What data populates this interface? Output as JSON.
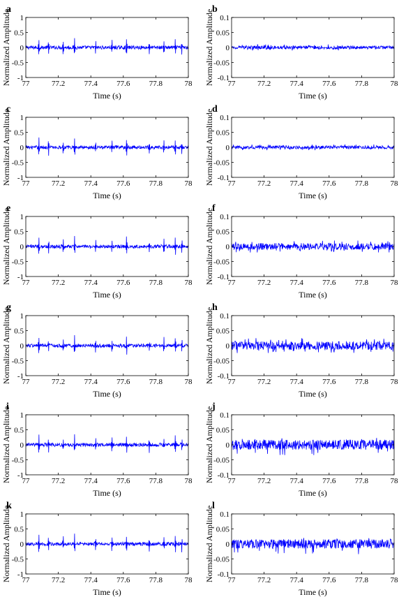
{
  "chart_data": [
    {
      "type": "line",
      "panel": "a",
      "xlabel": "Time (s)",
      "ylabel": "Normalized Amplitude",
      "xlim": [
        77,
        78
      ],
      "ylim": [
        -1,
        1
      ],
      "xticks": [
        "77",
        "77.2",
        "77.4",
        "77.6",
        "77.8",
        "78"
      ],
      "yticks": [
        "1",
        "0.5",
        "0",
        "-0.5",
        "-1"
      ],
      "series": [
        {
          "amplitude_range": [
            -0.3,
            0.35
          ],
          "color": "#0000ff",
          "impulses_at": [
            77.08,
            77.14,
            77.23,
            77.3,
            77.43,
            77.53,
            77.62,
            77.76,
            77.85,
            77.92,
            77.96
          ]
        }
      ]
    },
    {
      "type": "line",
      "panel": "b",
      "xlabel": "Time (s)",
      "ylabel": "Normalized Amplitude",
      "xlim": [
        77,
        78
      ],
      "ylim": [
        -0.1,
        0.1
      ],
      "xticks": [
        "77",
        "77.2",
        "77.4",
        "77.6",
        "77.8",
        "78"
      ],
      "yticks": [
        "0.1",
        "0.05",
        "0",
        "-0.05",
        "-0.1"
      ],
      "series": [
        {
          "amplitude_range": [
            -0.01,
            0.01
          ],
          "color": "#0000ff"
        }
      ]
    },
    {
      "type": "line",
      "panel": "c",
      "xlabel": "Time (s)",
      "ylabel": "Normalized Amplitude",
      "xlim": [
        77,
        78
      ],
      "ylim": [
        -1,
        1
      ],
      "xticks": [
        "77",
        "77.2",
        "77.4",
        "77.6",
        "77.8",
        "78"
      ],
      "yticks": [
        "1",
        "0.5",
        "0",
        "-0.5",
        "-1"
      ],
      "series": [
        {
          "amplitude_range": [
            -0.3,
            0.35
          ],
          "color": "#0000ff",
          "impulses_at": [
            77.08,
            77.14,
            77.23,
            77.3,
            77.43,
            77.53,
            77.62,
            77.76,
            77.85,
            77.92,
            77.96
          ]
        }
      ]
    },
    {
      "type": "line",
      "panel": "d",
      "xlabel": "Time (s)",
      "ylabel": "Normalized Amplitude",
      "xlim": [
        77,
        78
      ],
      "ylim": [
        -0.1,
        0.1
      ],
      "xticks": [
        "77",
        "77.2",
        "77.4",
        "77.6",
        "77.8",
        "78"
      ],
      "yticks": [
        "0.1",
        "0.05",
        "0",
        "-0.05",
        "-0.1"
      ],
      "series": [
        {
          "amplitude_range": [
            -0.01,
            0.01
          ],
          "color": "#0000ff"
        }
      ]
    },
    {
      "type": "line",
      "panel": "e",
      "xlabel": "Time (s)",
      "ylabel": "Normalized Amplitude",
      "xlim": [
        77,
        78
      ],
      "ylim": [
        -1,
        1
      ],
      "xticks": [
        "77",
        "77.2",
        "77.4",
        "77.6",
        "77.8",
        "78"
      ],
      "yticks": [
        "1",
        "0.5",
        "0",
        "-0.5",
        "-1"
      ],
      "series": [
        {
          "amplitude_range": [
            -0.3,
            0.35
          ],
          "color": "#0000ff",
          "impulses_at": [
            77.08,
            77.14,
            77.23,
            77.3,
            77.43,
            77.53,
            77.62,
            77.76,
            77.85,
            77.92,
            77.96
          ]
        }
      ]
    },
    {
      "type": "line",
      "panel": "f",
      "xlabel": "Time (s)",
      "ylabel": "Normalized Amplitude",
      "xlim": [
        77,
        78
      ],
      "ylim": [
        -0.1,
        0.1
      ],
      "xticks": [
        "77",
        "77.2",
        "77.4",
        "77.6",
        "77.8",
        "78"
      ],
      "yticks": [
        "0.1",
        "0.05",
        "0",
        "-0.05",
        "-0.1"
      ],
      "series": [
        {
          "amplitude_range": [
            -0.02,
            0.02
          ],
          "color": "#0000ff"
        }
      ]
    },
    {
      "type": "line",
      "panel": "g",
      "xlabel": "Time (s)",
      "ylabel": "Normalized Amplitude",
      "xlim": [
        77,
        78
      ],
      "ylim": [
        -1,
        1
      ],
      "xticks": [
        "77",
        "77.2",
        "77.4",
        "77.6",
        "77.8",
        "78"
      ],
      "yticks": [
        "1",
        "0.5",
        "0",
        "-0.5",
        "-1"
      ],
      "series": [
        {
          "amplitude_range": [
            -0.3,
            0.35
          ],
          "color": "#0000ff",
          "impulses_at": [
            77.08,
            77.14,
            77.23,
            77.3,
            77.43,
            77.53,
            77.62,
            77.76,
            77.85,
            77.92,
            77.96
          ]
        }
      ]
    },
    {
      "type": "line",
      "panel": "h",
      "xlabel": "Time (s)",
      "ylabel": "Normalized Amplitude",
      "xlim": [
        77,
        78
      ],
      "ylim": [
        -0.1,
        0.1
      ],
      "xticks": [
        "77",
        "77.2",
        "77.4",
        "77.6",
        "77.8",
        "78"
      ],
      "yticks": [
        "0.1",
        "0.05",
        "0",
        "-0.05",
        "-0.1"
      ],
      "series": [
        {
          "amplitude_range": [
            -0.025,
            0.025
          ],
          "color": "#0000ff"
        }
      ]
    },
    {
      "type": "line",
      "panel": "i",
      "xlabel": "Time (s)",
      "ylabel": "Normalized Amplitude",
      "xlim": [
        77,
        78
      ],
      "ylim": [
        -1,
        1
      ],
      "xticks": [
        "77",
        "77.2",
        "77.4",
        "77.6",
        "77.8",
        "78"
      ],
      "yticks": [
        "1",
        "0.5",
        "0",
        "-0.5",
        "-1"
      ],
      "series": [
        {
          "amplitude_range": [
            -0.3,
            0.35
          ],
          "color": "#0000ff",
          "impulses_at": [
            77.08,
            77.14,
            77.23,
            77.3,
            77.43,
            77.53,
            77.62,
            77.76,
            77.85,
            77.92,
            77.96
          ]
        }
      ]
    },
    {
      "type": "line",
      "panel": "j",
      "xlabel": "Time (s)",
      "ylabel": "Normalized Amplitude",
      "xlim": [
        77,
        78
      ],
      "ylim": [
        -0.1,
        0.1
      ],
      "xticks": [
        "77",
        "77.2",
        "77.4",
        "77.6",
        "77.8",
        "78"
      ],
      "yticks": [
        "0.1",
        "0.05",
        "0",
        "-0.05",
        "-0.1"
      ],
      "series": [
        {
          "amplitude_range": [
            -0.035,
            0.025
          ],
          "color": "#0000ff"
        }
      ]
    },
    {
      "type": "line",
      "panel": "k",
      "xlabel": "Time (s)",
      "ylabel": "Normalized Amplitude",
      "xlim": [
        77,
        78
      ],
      "ylim": [
        -1,
        1
      ],
      "xticks": [
        "77",
        "77.2",
        "77.4",
        "77.6",
        "77.8",
        "78"
      ],
      "yticks": [
        "1",
        "0.5",
        "0",
        "-0.5",
        "-1"
      ],
      "series": [
        {
          "amplitude_range": [
            -0.3,
            0.35
          ],
          "color": "#0000ff",
          "impulses_at": [
            77.08,
            77.14,
            77.23,
            77.3,
            77.43,
            77.53,
            77.62,
            77.76,
            77.85,
            77.92,
            77.96
          ]
        }
      ]
    },
    {
      "type": "line",
      "panel": "l",
      "xlabel": "Time (s)",
      "ylabel": "Normalized Amplitude",
      "xlim": [
        77,
        78
      ],
      "ylim": [
        -0.1,
        0.1
      ],
      "xticks": [
        "77",
        "77.2",
        "77.4",
        "77.6",
        "77.8",
        "78"
      ],
      "yticks": [
        "0.1",
        "0.05",
        "0",
        "-0.05",
        "-0.1"
      ],
      "series": [
        {
          "amplitude_range": [
            -0.035,
            0.02
          ],
          "color": "#0000ff"
        }
      ]
    }
  ]
}
